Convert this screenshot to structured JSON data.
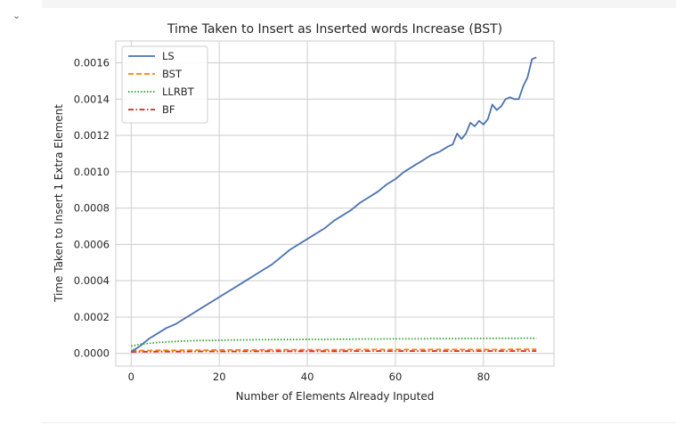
{
  "ui": {
    "collapse_icon": "chevron-down-icon",
    "collapse_glyph": "⌄"
  },
  "chart_data": {
    "type": "line",
    "title": "Time Taken to Insert as Inserted words Increase (BST)",
    "xlabel": "Number of Elements Already Inputed",
    "ylabel": "Time Taken to Insert 1 Extra Element",
    "xlim": [
      -3.5,
      96
    ],
    "ylim": [
      -7e-05,
      0.00172
    ],
    "xticks": [
      0,
      20,
      40,
      60,
      80
    ],
    "xtick_labels": [
      "0",
      "20",
      "40",
      "60",
      "80"
    ],
    "yticks": [
      0,
      0.0002,
      0.0004,
      0.0006,
      0.0008,
      0.001,
      0.0012,
      0.0014,
      0.0016
    ],
    "ytick_labels": [
      "0.0000",
      "0.0002",
      "0.0004",
      "0.0006",
      "0.0008",
      "0.0010",
      "0.0012",
      "0.0014",
      "0.0016"
    ],
    "grid": true,
    "legend_position": "top-left",
    "x": [
      0,
      2,
      4,
      6,
      8,
      10,
      12,
      14,
      16,
      18,
      20,
      22,
      24,
      26,
      28,
      30,
      32,
      34,
      36,
      38,
      40,
      42,
      44,
      46,
      48,
      50,
      52,
      54,
      56,
      58,
      60,
      62,
      64,
      66,
      68,
      70,
      72,
      73,
      74,
      75,
      76,
      77,
      78,
      79,
      80,
      81,
      82,
      83,
      84,
      85,
      86,
      87,
      88,
      89,
      90,
      91,
      92
    ],
    "series": [
      {
        "name": "LS",
        "color": "#4c72b0",
        "style": "solid",
        "values": [
          1e-05,
          4e-05,
          8e-05,
          0.00011,
          0.00014,
          0.00016,
          0.00019,
          0.00022,
          0.00025,
          0.00028,
          0.00031,
          0.00034,
          0.00037,
          0.0004,
          0.00043,
          0.00046,
          0.00049,
          0.00053,
          0.00057,
          0.0006,
          0.00063,
          0.00066,
          0.00069,
          0.00073,
          0.00076,
          0.00079,
          0.00083,
          0.00086,
          0.00089,
          0.00093,
          0.00096,
          0.001,
          0.00103,
          0.00106,
          0.00109,
          0.00111,
          0.00114,
          0.00115,
          0.00121,
          0.00118,
          0.00121,
          0.00127,
          0.00125,
          0.00128,
          0.00126,
          0.00129,
          0.00137,
          0.00134,
          0.00136,
          0.0014,
          0.00141,
          0.0014,
          0.0014,
          0.00147,
          0.00152,
          0.00162,
          0.00163
        ]
      },
      {
        "name": "BST",
        "color": "#ff7f0e",
        "style": "dashed",
        "values": [
          1.5e-05,
          1.6e-05,
          1.6e-05,
          1.7e-05,
          1.7e-05,
          1.7e-05,
          1.8e-05,
          1.8e-05,
          1.8e-05,
          1.8e-05,
          1.9e-05,
          1.9e-05,
          1.9e-05,
          1.9e-05,
          1.9e-05,
          2e-05,
          2e-05,
          2e-05,
          2e-05,
          2e-05,
          2e-05,
          2e-05,
          2e-05,
          2e-05,
          2e-05,
          2.1e-05,
          2.1e-05,
          2.1e-05,
          2.1e-05,
          2.1e-05,
          2.1e-05,
          2.1e-05,
          2.1e-05,
          2.1e-05,
          2.1e-05,
          2.1e-05,
          2.1e-05,
          2.1e-05,
          2.1e-05,
          2.1e-05,
          2.1e-05,
          2.1e-05,
          2.1e-05,
          2.1e-05,
          2.1e-05,
          2.1e-05,
          2.1e-05,
          2.1e-05,
          2.1e-05,
          2.1e-05,
          2.2e-05,
          2.2e-05,
          2.2e-05,
          2.2e-05,
          2.2e-05,
          2.2e-05,
          2.2e-05
        ]
      },
      {
        "name": "LLRBT",
        "color": "#2ca02c",
        "style": "dotted",
        "values": [
          4e-05,
          5e-05,
          5.5e-05,
          6e-05,
          6.3e-05,
          6.6e-05,
          6.8e-05,
          7e-05,
          7.1e-05,
          7.1e-05,
          7.2e-05,
          7.3e-05,
          7.4e-05,
          7.4e-05,
          7.5e-05,
          7.5e-05,
          7.6e-05,
          7.6e-05,
          7.6e-05,
          7.6e-05,
          7.7e-05,
          7.7e-05,
          7.7e-05,
          7.8e-05,
          7.8e-05,
          7.8e-05,
          7.9e-05,
          7.9e-05,
          7.9e-05,
          8e-05,
          8e-05,
          8e-05,
          8e-05,
          8e-05,
          8.1e-05,
          8.1e-05,
          8.1e-05,
          8.1e-05,
          8.1e-05,
          8.1e-05,
          8.2e-05,
          8.2e-05,
          8.2e-05,
          8.2e-05,
          8.2e-05,
          8.2e-05,
          8.2e-05,
          8.3e-05,
          8.3e-05,
          8.3e-05,
          8.3e-05,
          8.3e-05,
          8.3e-05,
          8.4e-05,
          8.4e-05,
          8.3e-05,
          8.3e-05
        ]
      },
      {
        "name": "BF",
        "color": "#d62728",
        "style": "dashdot",
        "values": [
          8e-06,
          9e-06,
          9e-06,
          1e-05,
          1e-05,
          1e-05,
          1e-05,
          1.1e-05,
          1.1e-05,
          1.1e-05,
          1.1e-05,
          1.1e-05,
          1.1e-05,
          1.2e-05,
          1.2e-05,
          1.2e-05,
          1.2e-05,
          1.2e-05,
          1.2e-05,
          1.2e-05,
          1.2e-05,
          1.2e-05,
          1.2e-05,
          1.2e-05,
          1.2e-05,
          1.3e-05,
          1.3e-05,
          1.3e-05,
          1.3e-05,
          1.3e-05,
          1.3e-05,
          1.3e-05,
          1.3e-05,
          1.3e-05,
          1.3e-05,
          1.3e-05,
          1.3e-05,
          1.3e-05,
          1.3e-05,
          1.3e-05,
          1.3e-05,
          1.3e-05,
          1.3e-05,
          1.3e-05,
          1.3e-05,
          1.3e-05,
          1.3e-05,
          1.3e-05,
          1.3e-05,
          1.3e-05,
          1.3e-05,
          1.3e-05,
          1.3e-05,
          1.3e-05,
          1.3e-05,
          1.3e-05,
          1.3e-05
        ]
      }
    ]
  }
}
